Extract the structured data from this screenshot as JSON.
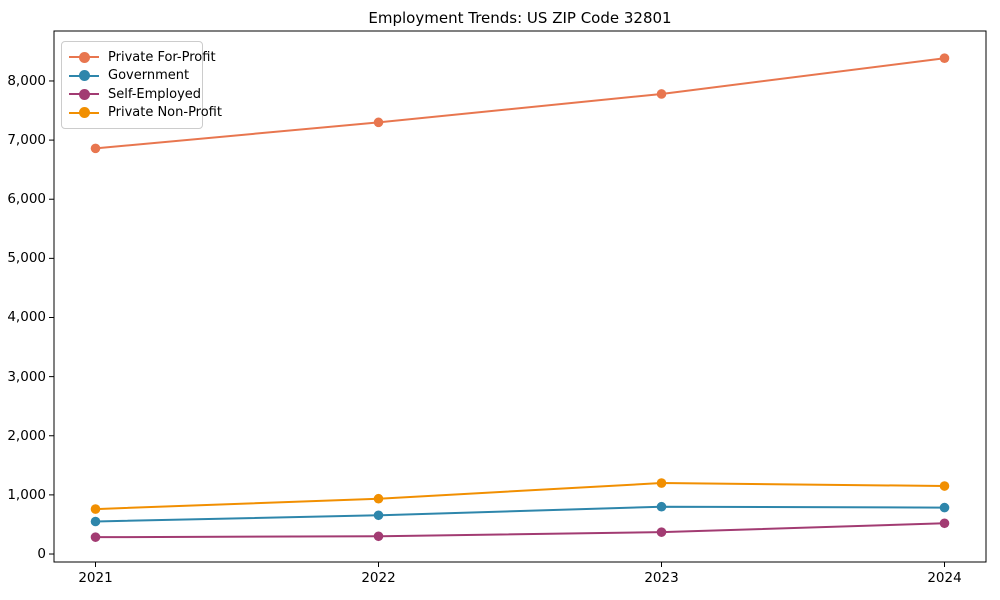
{
  "chart_data": {
    "type": "line",
    "title": "Employment Trends: US ZIP Code 32801",
    "categories": [
      "2021",
      "2022",
      "2023",
      "2024"
    ],
    "series": [
      {
        "name": "Private For-Profit",
        "color": "#E8764F",
        "values": [
          6860,
          7300,
          7780,
          8385
        ]
      },
      {
        "name": "Government",
        "color": "#2E86AB",
        "values": [
          550,
          655,
          800,
          785
        ]
      },
      {
        "name": "Self-Employed",
        "color": "#A23B72",
        "values": [
          285,
          300,
          370,
          520
        ]
      },
      {
        "name": "Private Non-Profit",
        "color": "#F18F01",
        "values": [
          760,
          935,
          1200,
          1150
        ]
      }
    ],
    "xlabel": "",
    "ylabel": "",
    "y_ticks": [
      0,
      1000,
      2000,
      3000,
      4000,
      5000,
      6000,
      7000,
      8000
    ],
    "y_tick_labels": [
      "0",
      "1,000",
      "2,000",
      "3,000",
      "4,000",
      "5,000",
      "6,000",
      "7,000",
      "8,000"
    ],
    "ylim": [
      -135,
      8845
    ],
    "grid": false,
    "legend_position": "upper left",
    "marker": "circle",
    "axis_color": "#000000"
  }
}
